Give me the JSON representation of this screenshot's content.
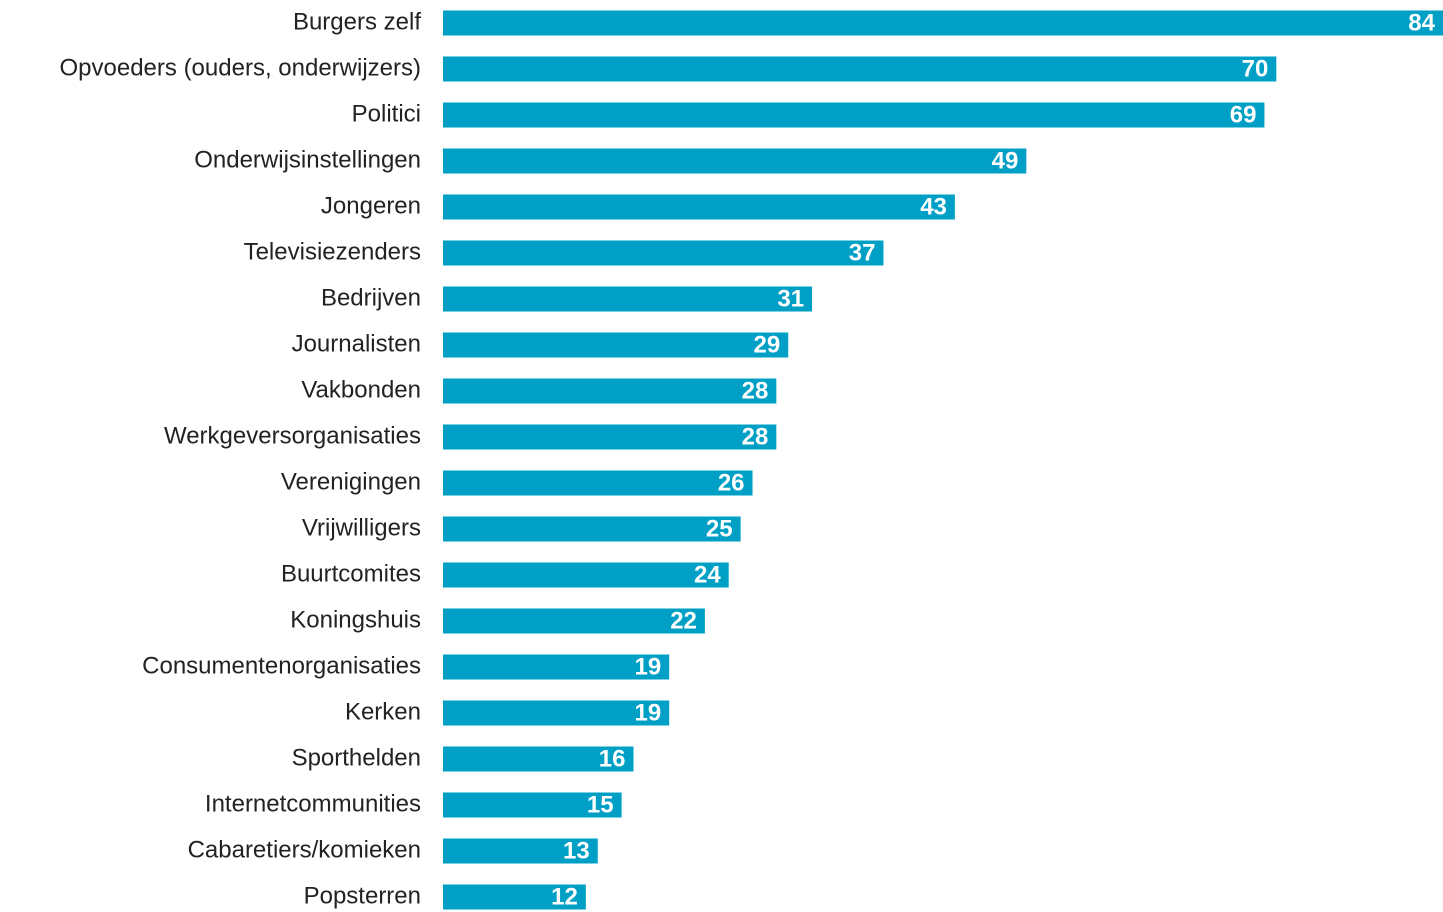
{
  "chart_data": {
    "type": "barh",
    "categories": [
      "Burgers zelf",
      "Opvoeders (ouders, onderwijzers)",
      "Politici",
      "Onderwijsinstellingen",
      "Jongeren",
      "Televisiezenders",
      "Bedrijven",
      "Journalisten",
      "Vakbonden",
      "Werkgeversorganisaties",
      "Verenigingen",
      "Vrijwilligers",
      "Buurtcomites",
      "Koningshuis",
      "Consumentenorganisaties",
      "Kerken",
      "Sporthelden",
      "Internetcommunities",
      "Cabaretiers/komieken",
      "Popsterren"
    ],
    "values": [
      84,
      70,
      69,
      49,
      43,
      37,
      31,
      29,
      28,
      28,
      26,
      25,
      24,
      22,
      19,
      19,
      16,
      15,
      13,
      12
    ],
    "color": "#00a0c6",
    "xlim": [
      0,
      84
    ]
  }
}
